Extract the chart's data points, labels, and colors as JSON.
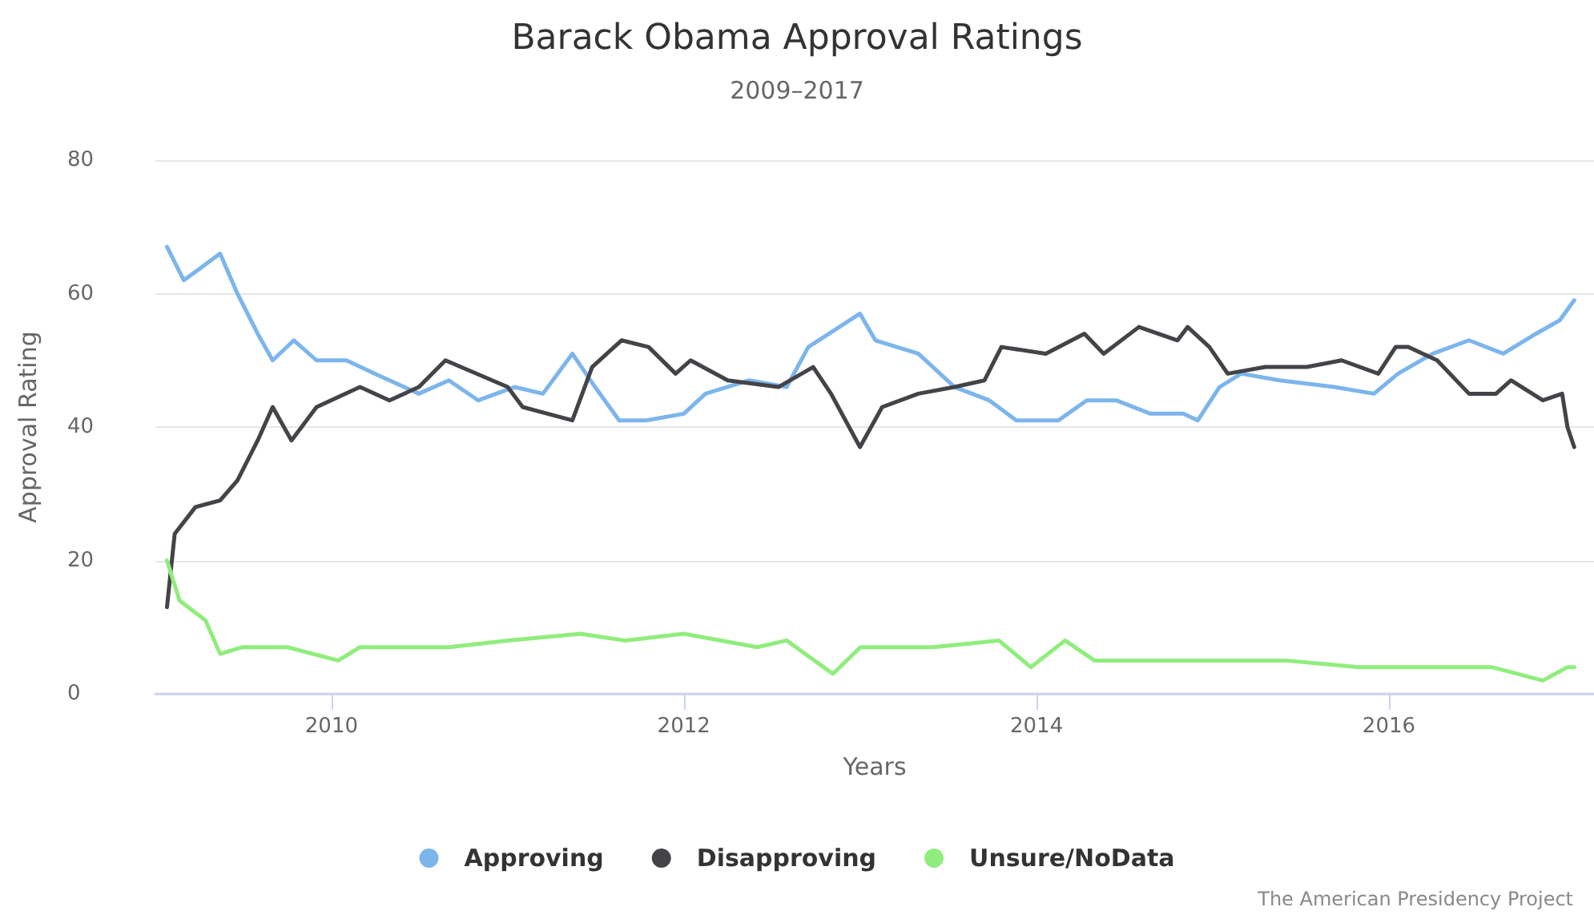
{
  "chart_data": {
    "type": "line",
    "title": "Barack Obama Approval Ratings",
    "subtitle": "2009–2017",
    "xlabel": "Years",
    "ylabel": "Approval Rating",
    "annotations": [
      "The American Presidency Project"
    ],
    "xlim": [
      "2009-01-01",
      "2017-03-01"
    ],
    "xticks": [
      {
        "value": "2010-01-01",
        "label": "2010"
      },
      {
        "value": "2012-01-01",
        "label": "2012"
      },
      {
        "value": "2014-01-01",
        "label": "2014"
      },
      {
        "value": "2016-01-01",
        "label": "2016"
      }
    ],
    "ylim": [
      0,
      80
    ],
    "yticks": [
      0,
      20,
      40,
      60,
      80
    ],
    "grid": "y",
    "legend": "bottom",
    "series": [
      {
        "name": "Approving",
        "color": "#7cb5ec",
        "x": [
          "2009-01-25",
          "2009-03-01",
          "2009-05-15",
          "2009-06-20",
          "2009-08-01",
          "2009-09-01",
          "2009-10-15",
          "2009-12-01",
          "2010-02-01",
          "2010-04-01",
          "2010-07-01",
          "2010-09-01",
          "2010-11-01",
          "2011-01-15",
          "2011-03-15",
          "2011-05-15",
          "2011-07-01",
          "2011-08-20",
          "2011-10-15",
          "2012-01-01",
          "2012-02-15",
          "2012-05-15",
          "2012-08-01",
          "2012-09-15",
          "2012-12-31",
          "2013-02-01",
          "2013-05-01",
          "2013-07-15",
          "2013-09-25",
          "2013-11-20",
          "2014-02-15",
          "2014-04-15",
          "2014-06-15",
          "2014-08-25",
          "2014-11-01",
          "2014-12-01",
          "2015-01-15",
          "2015-03-01",
          "2015-05-20",
          "2015-09-10",
          "2015-12-01",
          "2016-01-20",
          "2016-04-01",
          "2016-06-15",
          "2016-08-25",
          "2016-11-01",
          "2016-12-20",
          "2017-01-19"
        ],
        "values": [
          67,
          62,
          66,
          60,
          54,
          50,
          53,
          50,
          50,
          48,
          45,
          47,
          44,
          46,
          45,
          51,
          46,
          41,
          41,
          42,
          45,
          47,
          46,
          52,
          57,
          53,
          51,
          46,
          44,
          41,
          41,
          44,
          44,
          42,
          42,
          41,
          46,
          48,
          47,
          46,
          45,
          48,
          51,
          53,
          51,
          54,
          56,
          59
        ]
      },
      {
        "name": "Disapproving",
        "color": "#434348",
        "x": [
          "2009-01-25",
          "2009-02-10",
          "2009-03-25",
          "2009-05-15",
          "2009-06-20",
          "2009-08-01",
          "2009-09-01",
          "2009-10-10",
          "2009-12-01",
          "2010-03-01",
          "2010-05-01",
          "2010-07-01",
          "2010-08-25",
          "2011-01-01",
          "2011-02-01",
          "2011-05-15",
          "2011-06-25",
          "2011-08-25",
          "2011-10-20",
          "2011-12-15",
          "2012-01-15",
          "2012-04-01",
          "2012-07-15",
          "2012-09-25",
          "2012-11-01",
          "2012-12-31",
          "2013-02-15",
          "2013-05-01",
          "2013-07-15",
          "2013-09-15",
          "2013-10-20",
          "2014-01-20",
          "2014-04-10",
          "2014-05-20",
          "2014-08-01",
          "2014-10-20",
          "2014-11-10",
          "2014-12-25",
          "2015-02-01",
          "2015-04-20",
          "2015-07-15",
          "2015-09-25",
          "2015-12-10",
          "2016-01-15",
          "2016-02-10",
          "2016-04-10",
          "2016-06-15",
          "2016-08-10",
          "2016-09-10",
          "2016-11-15",
          "2016-12-25",
          "2017-01-05",
          "2017-01-19"
        ],
        "values": [
          13,
          24,
          28,
          29,
          32,
          38,
          43,
          38,
          43,
          46,
          44,
          46,
          50,
          46,
          43,
          41,
          49,
          53,
          52,
          48,
          50,
          47,
          46,
          49,
          45,
          37,
          43,
          45,
          46,
          47,
          52,
          51,
          54,
          51,
          55,
          53,
          55,
          52,
          48,
          49,
          49,
          50,
          48,
          52,
          52,
          50,
          45,
          45,
          47,
          44,
          45,
          40,
          37
        ]
      },
      {
        "name": "Unsure/NoData",
        "color": "#90ed7d",
        "x": [
          "2009-01-25",
          "2009-02-20",
          "2009-04-15",
          "2009-05-15",
          "2009-07-01",
          "2009-10-01",
          "2010-01-15",
          "2010-03-01",
          "2010-09-01",
          "2011-01-01",
          "2011-06-01",
          "2011-09-01",
          "2012-01-01",
          "2012-06-01",
          "2012-08-01",
          "2012-11-05",
          "2013-01-01",
          "2013-06-01",
          "2013-10-15",
          "2013-12-20",
          "2014-03-01",
          "2014-05-01",
          "2014-09-01",
          "2015-01-01",
          "2015-06-01",
          "2015-11-01",
          "2016-03-01",
          "2016-08-01",
          "2016-11-15",
          "2017-01-05",
          "2017-01-19"
        ],
        "values": [
          20,
          14,
          11,
          6,
          7,
          7,
          5,
          7,
          7,
          8,
          9,
          8,
          9,
          7,
          8,
          3,
          7,
          7,
          8,
          4,
          8,
          5,
          5,
          5,
          5,
          4,
          4,
          4,
          2,
          4,
          4
        ]
      }
    ]
  }
}
